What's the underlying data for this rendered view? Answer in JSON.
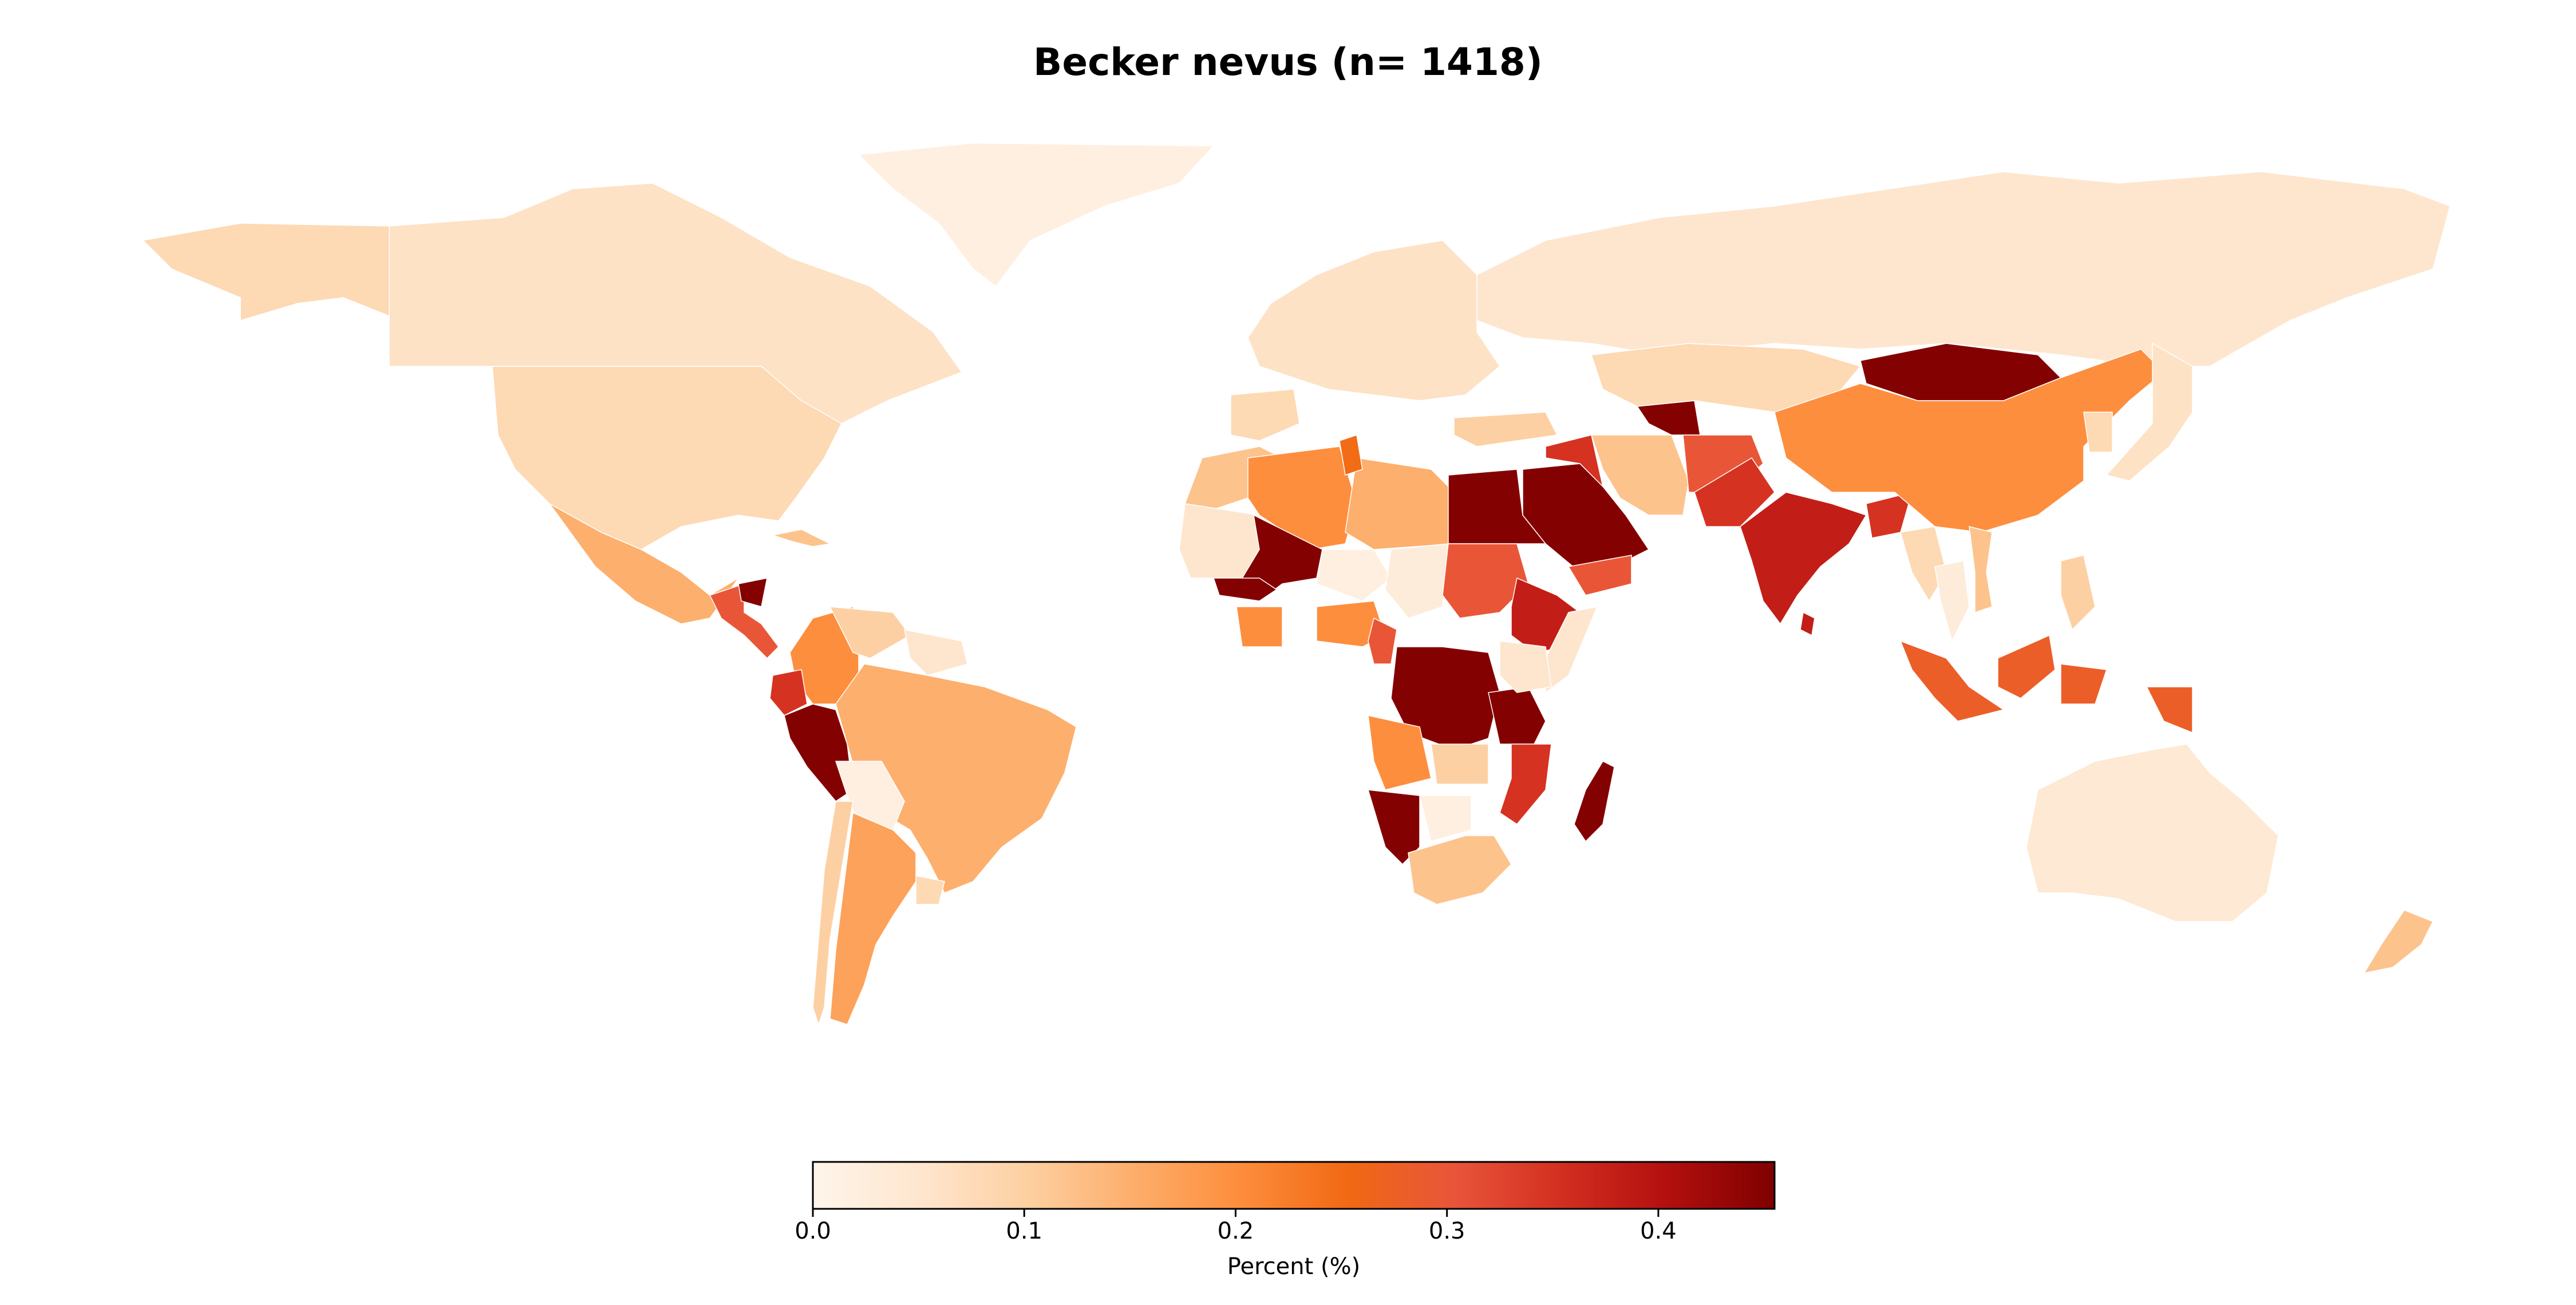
{
  "title": "Becker nevus (n= 1418)",
  "colorbar": {
    "label": "Percent (%)",
    "min": 0.0,
    "max": 0.455,
    "ticks": [
      {
        "value": 0.0,
        "label": "0.0"
      },
      {
        "value": 0.1,
        "label": "0.1"
      },
      {
        "value": 0.2,
        "label": "0.2"
      },
      {
        "value": 0.3,
        "label": "0.3"
      },
      {
        "value": 0.4,
        "label": "0.4"
      }
    ],
    "colormap": [
      "#fff5eb",
      "#fee6ce",
      "#fdd0a2",
      "#fdae6b",
      "#fd8d3c",
      "#f16913",
      "#e8553a",
      "#d32f20",
      "#b30f0f",
      "#7f0000"
    ]
  },
  "chart_data": {
    "type": "choropleth",
    "metric": "Percent (%)",
    "regions": [
      {
        "name": "Greenland",
        "value": 0.02
      },
      {
        "name": "Alaska",
        "value": 0.08
      },
      {
        "name": "Canada",
        "value": 0.06
      },
      {
        "name": "United States",
        "value": 0.08
      },
      {
        "name": "Mexico",
        "value": 0.15
      },
      {
        "name": "Central America",
        "value": 0.3
      },
      {
        "name": "Honduras",
        "value": 0.45
      },
      {
        "name": "Cuba",
        "value": 0.12
      },
      {
        "name": "Colombia",
        "value": 0.2
      },
      {
        "name": "Venezuela",
        "value": 0.1
      },
      {
        "name": "Guyana",
        "value": 0.05
      },
      {
        "name": "Ecuador",
        "value": 0.35
      },
      {
        "name": "Peru",
        "value": 0.45
      },
      {
        "name": "Brazil",
        "value": 0.15
      },
      {
        "name": "Bolivia",
        "value": 0.02
      },
      {
        "name": "Chile",
        "value": 0.1
      },
      {
        "name": "Argentina",
        "value": 0.17
      },
      {
        "name": "Uruguay",
        "value": 0.08
      },
      {
        "name": "Russia",
        "value": 0.05
      },
      {
        "name": "Europe",
        "value": 0.06
      },
      {
        "name": "Spain",
        "value": 0.08
      },
      {
        "name": "Morocco",
        "value": 0.12
      },
      {
        "name": "Algeria",
        "value": 0.2
      },
      {
        "name": "Libya",
        "value": 0.15
      },
      {
        "name": "Tunisia",
        "value": 0.25
      },
      {
        "name": "Egypt",
        "value": 0.45
      },
      {
        "name": "Mauritania",
        "value": 0.05
      },
      {
        "name": "Mali",
        "value": 0.45
      },
      {
        "name": "Senegal",
        "value": 0.45
      },
      {
        "name": "Niger",
        "value": 0.02
      },
      {
        "name": "Chad",
        "value": 0.03
      },
      {
        "name": "Sudan",
        "value": 0.3
      },
      {
        "name": "Ethiopia",
        "value": 0.38
      },
      {
        "name": "Somalia",
        "value": 0.05
      },
      {
        "name": "Nigeria",
        "value": 0.2
      },
      {
        "name": "Cameroon",
        "value": 0.3
      },
      {
        "name": "Ghana",
        "value": 0.2
      },
      {
        "name": "DR Congo",
        "value": 0.45
      },
      {
        "name": "Tanzania",
        "value": 0.45
      },
      {
        "name": "Kenya",
        "value": 0.05
      },
      {
        "name": "Angola",
        "value": 0.2
      },
      {
        "name": "Zambia",
        "value": 0.1
      },
      {
        "name": "Mozambique",
        "value": 0.35
      },
      {
        "name": "Namibia",
        "value": 0.45
      },
      {
        "name": "Botswana",
        "value": 0.02
      },
      {
        "name": "South Africa",
        "value": 0.12
      },
      {
        "name": "Madagascar",
        "value": 0.45
      },
      {
        "name": "Saudi Arabia",
        "value": 0.45
      },
      {
        "name": "Iraq",
        "value": 0.35
      },
      {
        "name": "Yemen",
        "value": 0.3
      },
      {
        "name": "Turkey",
        "value": 0.1
      },
      {
        "name": "Iran",
        "value": 0.12
      },
      {
        "name": "Turkmenistan",
        "value": 0.45
      },
      {
        "name": "Afghanistan",
        "value": 0.3
      },
      {
        "name": "Pakistan",
        "value": 0.35
      },
      {
        "name": "Kazakhstan",
        "value": 0.08
      },
      {
        "name": "India",
        "value": 0.38
      },
      {
        "name": "Sri Lanka",
        "value": 0.38
      },
      {
        "name": "Bangladesh",
        "value": 0.35
      },
      {
        "name": "Mongolia",
        "value": 0.45
      },
      {
        "name": "China",
        "value": 0.2
      },
      {
        "name": "Myanmar",
        "value": 0.08
      },
      {
        "name": "Thailand",
        "value": 0.03
      },
      {
        "name": "Vietnam",
        "value": 0.12
      },
      {
        "name": "Philippines",
        "value": 0.1
      },
      {
        "name": "Indonesia",
        "value": 0.28
      },
      {
        "name": "Papua New Guinea",
        "value": 0.28
      },
      {
        "name": "Japan",
        "value": 0.06
      },
      {
        "name": "Korea",
        "value": 0.08
      },
      {
        "name": "Australia",
        "value": 0.04
      },
      {
        "name": "New Zealand",
        "value": 0.12
      }
    ]
  }
}
